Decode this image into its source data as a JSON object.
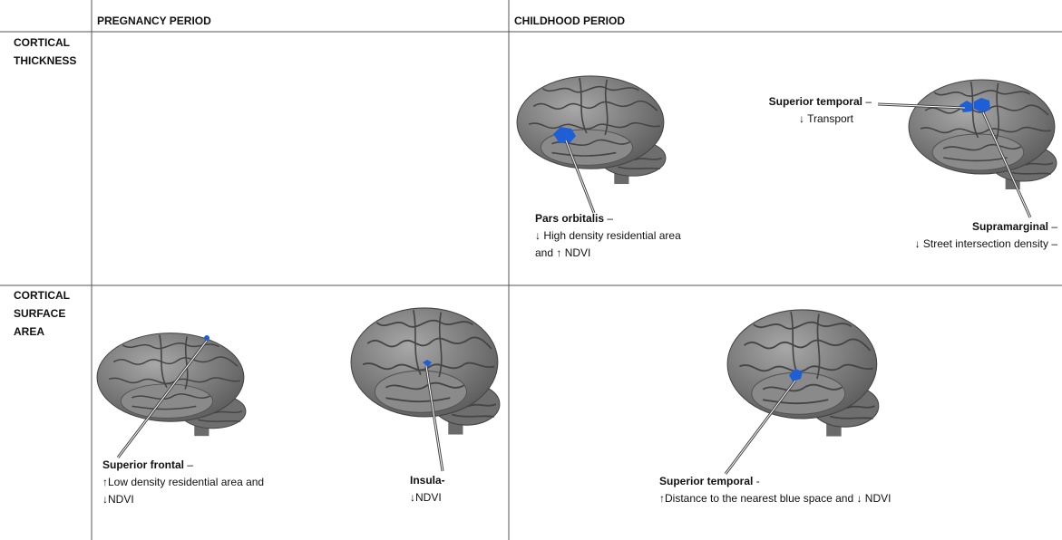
{
  "columns": [
    "PREGNANCY PERIOD",
    "CHILDHOOD PERIOD"
  ],
  "rows": [
    {
      "label": [
        "CORTICAL",
        "THICKNESS"
      ],
      "annotations": [
        {
          "region": "Pars orbitalis",
          "suffix": " –",
          "lines": [
            "↓ High density residential area",
            "and ↑ NDVI"
          ]
        },
        {
          "region": "Superior temporal",
          "suffix": " –",
          "lines": [
            "↓ Transport"
          ]
        },
        {
          "region": "Supramarginal",
          "suffix": " –",
          "lines": [
            "↓ Street intersection density –"
          ]
        }
      ]
    },
    {
      "label": [
        "CORTICAL",
        "SURFACE",
        "AREA"
      ],
      "annotations": [
        {
          "region": "Superior frontal",
          "suffix": " –",
          "lines": [
            "↑Low density residential area and",
            "↓NDVI"
          ]
        },
        {
          "region": "Insula-",
          "suffix": "",
          "lines": [
            "↓NDVI"
          ]
        },
        {
          "region": "Superior temporal",
          "suffix": " -",
          "lines": [
            "↑Distance to the nearest blue space and ↓ NDVI"
          ]
        }
      ]
    }
  ]
}
